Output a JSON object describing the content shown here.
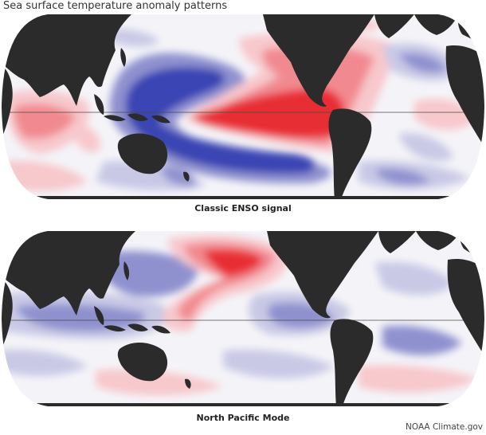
{
  "page": {
    "title": "Sea surface temperature anomaly patterns",
    "credit": "NOAA Climate.gov"
  },
  "maps": [
    {
      "label": "Classic ENSO signal"
    },
    {
      "label": "North Pacific Mode"
    }
  ],
  "colors": {
    "land": "#2b2b2b",
    "ocean_neutral": "#f4f4f8",
    "warm_light": "#f7c8cc",
    "warm_mid": "#f18a90",
    "warm_strong": "#e82e36",
    "cool_light": "#c9c9e6",
    "cool_mid": "#8f91cf",
    "cool_strong": "#3b44b3",
    "equator_line": "#4a4a4a"
  }
}
